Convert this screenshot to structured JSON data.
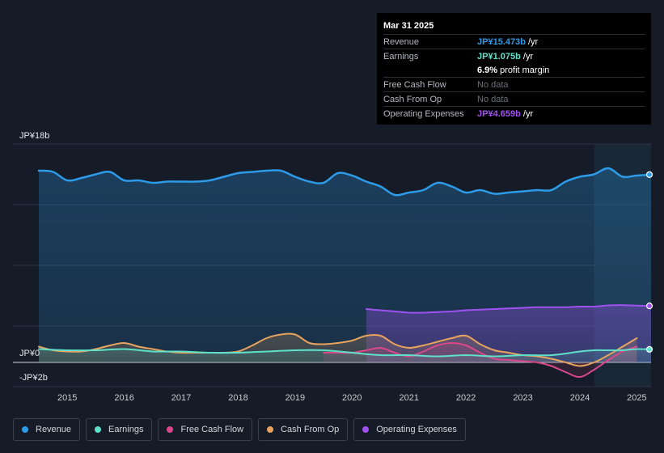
{
  "tooltip": {
    "date": "Mar 31 2025",
    "rows": [
      {
        "label": "Revenue",
        "value": "JP¥15.473b",
        "unit": " /yr",
        "color": "#2d9be8"
      },
      {
        "label": "Earnings",
        "value": "JP¥1.075b",
        "unit": " /yr",
        "color": "#5fe0c9"
      },
      {
        "label": "",
        "value": "6.9%",
        "unit": " profit margin",
        "color": "#ffffff"
      },
      {
        "label": "Free Cash Flow",
        "value": "No data",
        "unit": "",
        "color": "#6b7079"
      },
      {
        "label": "Cash From Op",
        "value": "No data",
        "unit": "",
        "color": "#6b7079"
      },
      {
        "label": "Operating Expenses",
        "value": "JP¥4.659b",
        "unit": " /yr",
        "color": "#a052f0"
      }
    ]
  },
  "legend": [
    {
      "label": "Revenue",
      "color": "#2d9be8"
    },
    {
      "label": "Earnings",
      "color": "#5fe0c9"
    },
    {
      "label": "Free Cash Flow",
      "color": "#d9498a"
    },
    {
      "label": "Cash From Op",
      "color": "#e8a45e"
    },
    {
      "label": "Operating Expenses",
      "color": "#a052f0"
    }
  ],
  "chart_data": {
    "type": "area",
    "title": "",
    "xlabel": "",
    "ylabel": "",
    "y_top_label": "JP¥18b",
    "y_zero_label": "JP¥0",
    "y_bottom_label": "-JP¥2b",
    "ylim": [
      -2,
      18
    ],
    "xlim": [
      2014.5,
      2025.25
    ],
    "x_ticks": [
      "2015",
      "2016",
      "2017",
      "2018",
      "2019",
      "2020",
      "2021",
      "2022",
      "2023",
      "2024",
      "2025"
    ],
    "x_tick_values": [
      2015,
      2016,
      2017,
      2018,
      2019,
      2020,
      2021,
      2022,
      2023,
      2024,
      2025
    ],
    "highlight_from": 2024.25,
    "series": [
      {
        "name": "Revenue",
        "color": "#2d9be8",
        "x": [
          2014.5,
          2014.75,
          2015.0,
          2015.25,
          2015.5,
          2015.75,
          2016.0,
          2016.25,
          2016.5,
          2016.75,
          2017.0,
          2017.25,
          2017.5,
          2017.75,
          2018.0,
          2018.25,
          2018.5,
          2018.75,
          2019.0,
          2019.25,
          2019.5,
          2019.75,
          2020.0,
          2020.25,
          2020.5,
          2020.75,
          2021.0,
          2021.25,
          2021.5,
          2021.75,
          2022.0,
          2022.25,
          2022.5,
          2022.75,
          2023.0,
          2023.25,
          2023.5,
          2023.75,
          2024.0,
          2024.25,
          2024.5,
          2024.75,
          2025.0,
          2025.25
        ],
        "y": [
          15.8,
          15.7,
          15.0,
          15.2,
          15.5,
          15.7,
          15.0,
          15.0,
          14.8,
          14.9,
          14.9,
          14.9,
          15.0,
          15.3,
          15.6,
          15.7,
          15.8,
          15.8,
          15.3,
          14.9,
          14.8,
          15.6,
          15.4,
          14.9,
          14.5,
          13.8,
          14.0,
          14.2,
          14.8,
          14.5,
          14.0,
          14.2,
          13.9,
          14.0,
          14.1,
          14.2,
          14.2,
          14.9,
          15.3,
          15.5,
          16.0,
          15.3,
          15.4,
          15.473
        ]
      },
      {
        "name": "Earnings",
        "color": "#5fe0c9",
        "x": [
          2014.5,
          2015.0,
          2015.5,
          2016.0,
          2016.5,
          2017.0,
          2017.5,
          2018.0,
          2018.5,
          2019.0,
          2019.5,
          2020.0,
          2020.5,
          2021.0,
          2021.5,
          2022.0,
          2022.5,
          2023.0,
          2023.5,
          2024.0,
          2024.25,
          2024.5,
          2024.75,
          2025.0,
          2025.25
        ],
        "y": [
          1.1,
          1.0,
          1.0,
          1.1,
          0.9,
          0.9,
          0.8,
          0.8,
          0.9,
          1.0,
          1.0,
          0.8,
          0.6,
          0.6,
          0.5,
          0.6,
          0.5,
          0.6,
          0.6,
          0.9,
          1.0,
          1.0,
          1.0,
          1.1,
          1.075
        ]
      },
      {
        "name": "Free Cash Flow",
        "color": "#d9498a",
        "x": [
          2019.5,
          2019.75,
          2020.0,
          2020.25,
          2020.5,
          2020.75,
          2021.0,
          2021.25,
          2021.5,
          2021.75,
          2022.0,
          2022.25,
          2022.5,
          2022.75,
          2023.0,
          2023.25,
          2023.5,
          2023.75,
          2024.0,
          2024.25,
          2024.5,
          2024.75,
          2025.0
        ],
        "y": [
          0.8,
          0.8,
          0.8,
          1.0,
          1.2,
          0.8,
          0.5,
          0.9,
          1.4,
          1.6,
          1.4,
          0.8,
          0.3,
          0.2,
          0.1,
          0.0,
          -0.3,
          -0.8,
          -1.2,
          -0.6,
          0.2,
          0.9,
          1.3
        ]
      },
      {
        "name": "Cash From Op",
        "color": "#e8a45e",
        "x": [
          2014.5,
          2014.75,
          2015.0,
          2015.25,
          2015.5,
          2015.75,
          2016.0,
          2016.25,
          2016.5,
          2016.75,
          2017.0,
          2017.25,
          2017.5,
          2017.75,
          2018.0,
          2018.25,
          2018.5,
          2018.75,
          2019.0,
          2019.25,
          2019.5,
          2019.75,
          2020.0,
          2020.25,
          2020.5,
          2020.75,
          2021.0,
          2021.25,
          2021.5,
          2021.75,
          2022.0,
          2022.25,
          2022.5,
          2022.75,
          2023.0,
          2023.25,
          2023.5,
          2023.75,
          2024.0,
          2024.25,
          2024.5,
          2024.75,
          2025.0
        ],
        "y": [
          1.3,
          1.0,
          0.9,
          0.9,
          1.1,
          1.4,
          1.6,
          1.3,
          1.1,
          0.9,
          0.8,
          0.8,
          0.8,
          0.8,
          0.9,
          1.4,
          2.0,
          2.3,
          2.3,
          1.6,
          1.5,
          1.6,
          1.8,
          2.2,
          2.2,
          1.5,
          1.2,
          1.4,
          1.7,
          2.0,
          2.2,
          1.5,
          1.0,
          0.8,
          0.6,
          0.5,
          0.3,
          0.0,
          -0.3,
          0.0,
          0.6,
          1.3,
          2.0
        ]
      },
      {
        "name": "Operating Expenses",
        "color": "#a052f0",
        "x": [
          2020.25,
          2020.5,
          2020.75,
          2021.0,
          2021.25,
          2021.5,
          2021.75,
          2022.0,
          2022.25,
          2022.5,
          2022.75,
          2023.0,
          2023.25,
          2023.5,
          2023.75,
          2024.0,
          2024.25,
          2024.5,
          2024.75,
          2025.0,
          2025.25
        ],
        "y": [
          4.4,
          4.3,
          4.2,
          4.1,
          4.1,
          4.15,
          4.2,
          4.3,
          4.35,
          4.4,
          4.45,
          4.5,
          4.55,
          4.55,
          4.55,
          4.6,
          4.6,
          4.7,
          4.72,
          4.68,
          4.659
        ]
      }
    ]
  }
}
